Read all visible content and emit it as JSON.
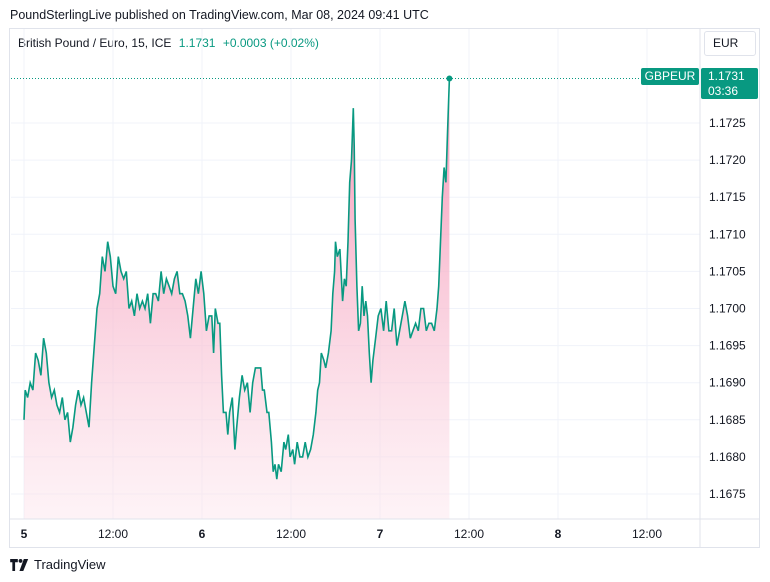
{
  "header": {
    "publisher": "PoundSterlingLive published on TradingView.com, Mar 08, 2024 09:41 UTC"
  },
  "legend": {
    "symbol": "British Pound / Euro, 15, ICE",
    "last": "1.1731",
    "change": "+0.0003 (+0.02%)"
  },
  "currency_button": "EUR",
  "price_tag": {
    "ticker": "GBPEUR",
    "price": "1.1731",
    "countdown": "03:36"
  },
  "footer": {
    "brand": "TradingView"
  },
  "colors": {
    "line": "#089981",
    "area_top": "#f48fb1",
    "area_bottom": "#fce4ec",
    "grid": "#f0f3fa",
    "tag_bg": "#089981"
  },
  "chart_data": {
    "type": "area",
    "title": "British Pound / Euro, 15, ICE",
    "ylim": [
      1.1671,
      1.1735
    ],
    "y_ticks": [
      "1.1675",
      "1.1680",
      "1.1685",
      "1.1690",
      "1.1695",
      "1.1700",
      "1.1705",
      "1.1710",
      "1.1715",
      "1.1720",
      "1.1725"
    ],
    "x_ticks": [
      {
        "label": "5",
        "bold": true,
        "t": 0.75
      },
      {
        "label": "12:00",
        "bold": false,
        "t": 1.25
      },
      {
        "label": "6",
        "bold": true,
        "t": 1.75
      },
      {
        "label": "12:00",
        "bold": false,
        "t": 2.25
      },
      {
        "label": "7",
        "bold": true,
        "t": 2.75
      },
      {
        "label": "12:00",
        "bold": false,
        "t": 3.25
      },
      {
        "label": "8",
        "bold": true,
        "t": 3.75
      },
      {
        "label": "12:00",
        "bold": false,
        "t": 4.25
      }
    ],
    "x_range": [
      0.75,
      4.72
    ],
    "series": [
      {
        "points": [
          [
            0.75,
            1.1685
          ],
          [
            0.757,
            1.1689
          ],
          [
            0.77,
            1.1688
          ],
          [
            0.785,
            1.169
          ],
          [
            0.8,
            1.1689
          ],
          [
            0.815,
            1.1694
          ],
          [
            0.83,
            1.1693
          ],
          [
            0.845,
            1.1691
          ],
          [
            0.86,
            1.1696
          ],
          [
            0.875,
            1.1694
          ],
          [
            0.89,
            1.169
          ],
          [
            0.905,
            1.1688
          ],
          [
            0.92,
            1.1689
          ],
          [
            0.935,
            1.1687
          ],
          [
            0.95,
            1.1686
          ],
          [
            0.965,
            1.1688
          ],
          [
            0.98,
            1.1685
          ],
          [
            0.995,
            1.1686
          ],
          [
            1.01,
            1.1682
          ],
          [
            1.025,
            1.1684
          ],
          [
            1.04,
            1.1687
          ],
          [
            1.055,
            1.1689
          ],
          [
            1.07,
            1.1687
          ],
          [
            1.085,
            1.1688
          ],
          [
            1.1,
            1.1686
          ],
          [
            1.115,
            1.1684
          ],
          [
            1.13,
            1.169
          ],
          [
            1.145,
            1.1695
          ],
          [
            1.16,
            1.17
          ],
          [
            1.175,
            1.1702
          ],
          [
            1.19,
            1.1707
          ],
          [
            1.205,
            1.1705
          ],
          [
            1.22,
            1.1709
          ],
          [
            1.235,
            1.1707
          ],
          [
            1.25,
            1.1703
          ],
          [
            1.265,
            1.1702
          ],
          [
            1.28,
            1.1707
          ],
          [
            1.295,
            1.1705
          ],
          [
            1.31,
            1.1704
          ],
          [
            1.325,
            1.1705
          ],
          [
            1.34,
            1.17
          ],
          [
            1.355,
            1.1701
          ],
          [
            1.37,
            1.1699
          ],
          [
            1.385,
            1.1702
          ],
          [
            1.4,
            1.17
          ],
          [
            1.415,
            1.1701
          ],
          [
            1.43,
            1.17
          ],
          [
            1.445,
            1.1702
          ],
          [
            1.46,
            1.1698
          ],
          [
            1.475,
            1.1702
          ],
          [
            1.49,
            1.1702
          ],
          [
            1.505,
            1.1701
          ],
          [
            1.52,
            1.1705
          ],
          [
            1.535,
            1.1702
          ],
          [
            1.55,
            1.1704
          ],
          [
            1.565,
            1.1703
          ],
          [
            1.58,
            1.1702
          ],
          [
            1.595,
            1.1704
          ],
          [
            1.61,
            1.1705
          ],
          [
            1.625,
            1.1702
          ],
          [
            1.64,
            1.1702
          ],
          [
            1.655,
            1.1701
          ],
          [
            1.67,
            1.1699
          ],
          [
            1.685,
            1.1696
          ],
          [
            1.7,
            1.17
          ],
          [
            1.715,
            1.1704
          ],
          [
            1.73,
            1.1702
          ],
          [
            1.745,
            1.1705
          ],
          [
            1.76,
            1.1702
          ],
          [
            1.775,
            1.1697
          ],
          [
            1.79,
            1.1699
          ],
          [
            1.805,
            1.1699
          ],
          [
            1.815,
            1.1694
          ],
          [
            1.825,
            1.17
          ],
          [
            1.84,
            1.1698
          ],
          [
            1.85,
            1.1698
          ],
          [
            1.86,
            1.1691
          ],
          [
            1.87,
            1.1686
          ],
          [
            1.885,
            1.1686
          ],
          [
            1.895,
            1.1683
          ],
          [
            1.905,
            1.1686
          ],
          [
            1.92,
            1.1688
          ],
          [
            1.935,
            1.1681
          ],
          [
            1.945,
            1.1684
          ],
          [
            1.96,
            1.1688
          ],
          [
            1.975,
            1.1691
          ],
          [
            1.99,
            1.1689
          ],
          [
            2.005,
            1.169
          ],
          [
            2.02,
            1.1686
          ],
          [
            2.035,
            1.169
          ],
          [
            2.05,
            1.1692
          ],
          [
            2.065,
            1.1692
          ],
          [
            2.08,
            1.1692
          ],
          [
            2.09,
            1.1689
          ],
          [
            2.1,
            1.1689
          ],
          [
            2.115,
            1.1686
          ],
          [
            2.125,
            1.1686
          ],
          [
            2.14,
            1.1682
          ],
          [
            2.15,
            1.1678
          ],
          [
            2.16,
            1.1679
          ],
          [
            2.17,
            1.1677
          ],
          [
            2.18,
            1.1679
          ],
          [
            2.195,
            1.1678
          ],
          [
            2.21,
            1.1682
          ],
          [
            2.22,
            1.1681
          ],
          [
            2.235,
            1.1683
          ],
          [
            2.245,
            1.168
          ],
          [
            2.26,
            1.1681
          ],
          [
            2.27,
            1.1679
          ],
          [
            2.285,
            1.1682
          ],
          [
            2.3,
            1.168
          ],
          [
            2.315,
            1.168
          ],
          [
            2.33,
            1.1682
          ],
          [
            2.345,
            1.168
          ],
          [
            2.36,
            1.1681
          ],
          [
            2.375,
            1.1683
          ],
          [
            2.39,
            1.1686
          ],
          [
            2.4,
            1.1689
          ],
          [
            2.41,
            1.169
          ],
          [
            2.42,
            1.1694
          ],
          [
            2.435,
            1.1693
          ],
          [
            2.445,
            1.1692
          ],
          [
            2.46,
            1.1694
          ],
          [
            2.475,
            1.1697
          ],
          [
            2.485,
            1.1702
          ],
          [
            2.495,
            1.1705
          ],
          [
            2.5,
            1.1709
          ],
          [
            2.51,
            1.1707
          ],
          [
            2.525,
            1.1708
          ],
          [
            2.54,
            1.1701
          ],
          [
            2.55,
            1.1704
          ],
          [
            2.56,
            1.1703
          ],
          [
            2.57,
            1.1709
          ],
          [
            2.58,
            1.1717
          ],
          [
            2.59,
            1.172
          ],
          [
            2.6,
            1.1727
          ],
          [
            2.605,
            1.1722
          ],
          [
            2.61,
            1.1712
          ],
          [
            2.62,
            1.1703
          ],
          [
            2.63,
            1.1697
          ],
          [
            2.64,
            1.1698
          ],
          [
            2.65,
            1.1703
          ],
          [
            2.66,
            1.1699
          ],
          [
            2.67,
            1.1701
          ],
          [
            2.68,
            1.1699
          ],
          [
            2.69,
            1.1694
          ],
          [
            2.7,
            1.169
          ],
          [
            2.71,
            1.1693
          ],
          [
            2.725,
            1.1696
          ],
          [
            2.74,
            1.1699
          ],
          [
            2.755,
            1.17
          ],
          [
            2.77,
            1.1697
          ],
          [
            2.785,
            1.1701
          ],
          [
            2.8,
            1.1697
          ],
          [
            2.815,
            1.1697
          ],
          [
            2.83,
            1.17
          ],
          [
            2.845,
            1.1695
          ],
          [
            2.86,
            1.1697
          ],
          [
            2.875,
            1.1699
          ],
          [
            2.89,
            1.1701
          ],
          [
            2.905,
            1.1699
          ],
          [
            2.92,
            1.1696
          ],
          [
            2.935,
            1.1697
          ],
          [
            2.95,
            1.1698
          ],
          [
            2.965,
            1.1697
          ],
          [
            2.98,
            1.17
          ],
          [
            2.995,
            1.17
          ],
          [
            3.01,
            1.1697
          ],
          [
            3.025,
            1.1698
          ],
          [
            3.04,
            1.1698
          ],
          [
            3.055,
            1.1697
          ],
          [
            3.07,
            1.17
          ],
          [
            3.08,
            1.1703
          ],
          [
            3.09,
            1.1709
          ],
          [
            3.1,
            1.1715
          ],
          [
            3.11,
            1.1719
          ],
          [
            3.12,
            1.1717
          ],
          [
            3.13,
            1.1724
          ],
          [
            3.14,
            1.1731
          ]
        ]
      }
    ]
  }
}
